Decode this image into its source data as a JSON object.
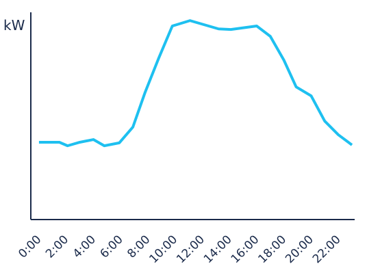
{
  "chart_data": {
    "type": "line",
    "y_label": "kW",
    "x": [
      0,
      1.5,
      2.1,
      3,
      4,
      4.8,
      5.9,
      6.9,
      7.8,
      8.8,
      9.8,
      11.1,
      13.2,
      14.1,
      16,
      17,
      18,
      18.9,
      20,
      21,
      22,
      23
    ],
    "series": [
      {
        "color": "#1ec0f0",
        "values": [
          37.3,
          37.3,
          35.6,
          37.3,
          38.6,
          35.6,
          37,
          44.6,
          61.4,
          77.9,
          93.4,
          96,
          92,
          91.7,
          93.4,
          88.4,
          76.9,
          64,
          59.7,
          47.5,
          40.9,
          36
        ]
      }
    ],
    "xlim": [
      -0.6,
      23.2
    ],
    "ylim": [
      0,
      100
    ],
    "xticks": [
      {
        "value": 0,
        "label": "0:00"
      },
      {
        "value": 2,
        "label": "2:00"
      },
      {
        "value": 4,
        "label": "4:00"
      },
      {
        "value": 6,
        "label": "6:00"
      },
      {
        "value": 8,
        "label": "8:00"
      },
      {
        "value": 10,
        "label": "10:00"
      },
      {
        "value": 12,
        "label": "12:00"
      },
      {
        "value": 14,
        "label": "14:00"
      },
      {
        "value": 16,
        "label": "16:00"
      },
      {
        "value": 18,
        "label": "18:00"
      },
      {
        "value": 20,
        "label": "20:00"
      },
      {
        "value": 22,
        "label": "22:00"
      }
    ],
    "axis_color": "#1a2a4a"
  }
}
